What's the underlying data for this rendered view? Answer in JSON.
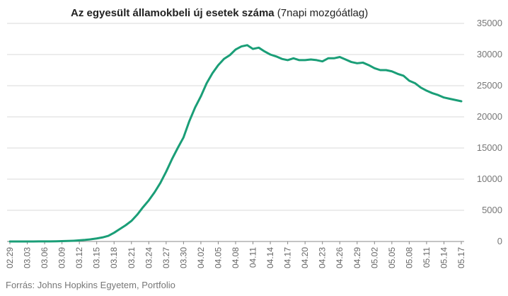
{
  "chart_data": {
    "type": "line",
    "title_bold": "Az egyesült államokbeli  új esetek száma",
    "title_normal": " (7napi mozgóátlag)",
    "source": "Forrás: Johns Hopkins Egyetem, Portfolio",
    "ylim": [
      0,
      35000
    ],
    "yticks": [
      0,
      5000,
      10000,
      15000,
      20000,
      25000,
      30000,
      35000
    ],
    "x_tick_labels": [
      "02.29",
      "03.03",
      "03.06",
      "03.09",
      "03.12",
      "03.15",
      "03.18",
      "03.21",
      "03.24",
      "03.27",
      "03.30",
      "04.02",
      "04.05",
      "04.08",
      "04.11",
      "04.14",
      "04.17",
      "04.20",
      "04.23",
      "04.26",
      "04.29",
      "05.02",
      "05.05",
      "05.08",
      "05.11",
      "05.14",
      "05.17"
    ],
    "grid": true,
    "y_axis_position": "right",
    "series_color": "#1a9e77",
    "x": [
      "02.29",
      "03.01",
      "03.02",
      "03.03",
      "03.04",
      "03.05",
      "03.06",
      "03.07",
      "03.08",
      "03.09",
      "03.10",
      "03.11",
      "03.12",
      "03.13",
      "03.14",
      "03.15",
      "03.16",
      "03.17",
      "03.18",
      "03.19",
      "03.20",
      "03.21",
      "03.22",
      "03.23",
      "03.24",
      "03.25",
      "03.26",
      "03.27",
      "03.28",
      "03.29",
      "03.30",
      "03.31",
      "04.01",
      "04.02",
      "04.03",
      "04.04",
      "04.05",
      "04.06",
      "04.07",
      "04.08",
      "04.09",
      "04.10",
      "04.11",
      "04.12",
      "04.13",
      "04.14",
      "04.15",
      "04.16",
      "04.17",
      "04.18",
      "04.19",
      "04.20",
      "04.21",
      "04.22",
      "04.23",
      "04.24",
      "04.25",
      "04.26",
      "04.27",
      "04.28",
      "04.29",
      "04.30",
      "05.01",
      "05.02",
      "05.03",
      "05.04",
      "05.05",
      "05.06",
      "05.07",
      "05.08",
      "05.09",
      "05.10",
      "05.11",
      "05.12",
      "05.13",
      "05.14",
      "05.15",
      "05.16",
      "05.17"
    ],
    "values": [
      2,
      3,
      4,
      5,
      7,
      10,
      15,
      20,
      30,
      50,
      80,
      120,
      180,
      250,
      350,
      480,
      650,
      900,
      1400,
      2000,
      2600,
      3300,
      4300,
      5500,
      6600,
      7900,
      9400,
      11200,
      13200,
      15000,
      16700,
      19300,
      21500,
      23300,
      25400,
      27000,
      28300,
      29300,
      29900,
      30800,
      31300,
      31500,
      30900,
      31100,
      30500,
      30000,
      29700,
      29300,
      29100,
      29400,
      29100,
      29100,
      29200,
      29100,
      28900,
      29400,
      29400,
      29600,
      29200,
      28800,
      28600,
      28700,
      28300,
      27800,
      27500,
      27500,
      27300,
      26900,
      26600,
      25800,
      25400,
      24700,
      24200,
      23800,
      23500,
      23100,
      22900,
      22700,
      22500
    ]
  }
}
